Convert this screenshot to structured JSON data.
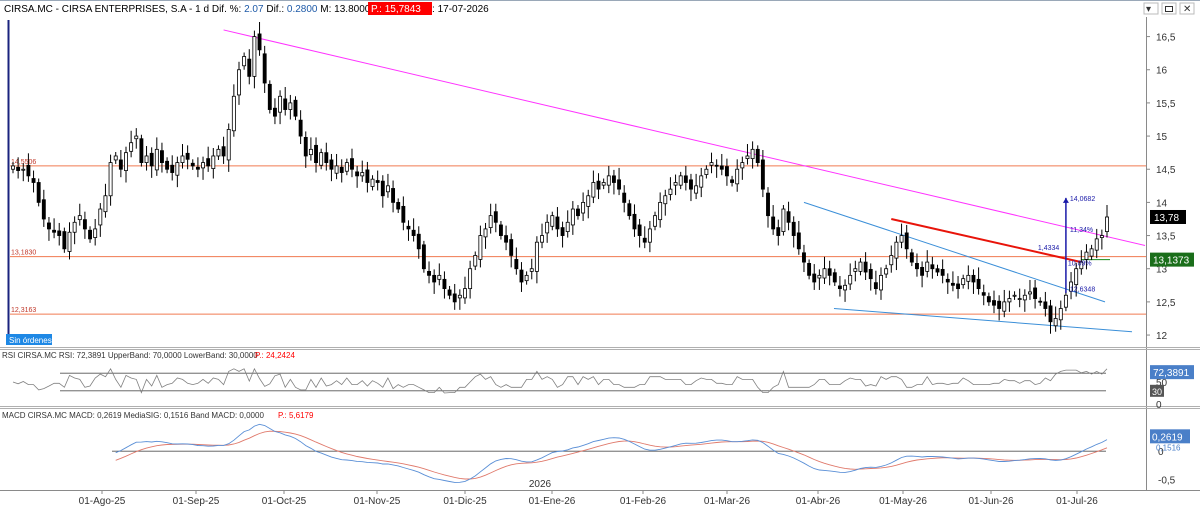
{
  "header": {
    "ticker": "CIRSA.MC",
    "sep1": " - ",
    "company": "CIRSA ENTERPRISES, S.A",
    "sep2": " - ",
    "period": " 1 d",
    "difpct_label": " Dif. %: ",
    "difpct_value": "2.07",
    "dif_label": " Dif.: ",
    "dif_value": "0.2800",
    "rest": " M: 13.8000  m: 13.4400  F: 17-07-2026 ",
    "pbox": " P.: 15,7843 "
  },
  "toolbar": {
    "minimize": "▾",
    "close": "✕"
  },
  "colors": {
    "up": "#000000",
    "down": "#000000",
    "magenta_line": "#ff33ff",
    "blue_channel": "#3b8fd8",
    "red_ma": "#e8140a",
    "horizontal_level": "#f07a50",
    "rsi_line": "#808080",
    "macd_blue": "#5a8fd6",
    "macd_red": "#e07a6c",
    "price_box_last": "#000000",
    "price_box_ma": "#1a6e1a",
    "price_box_blue": "#4a7fc8",
    "header_highlight_blue": "#1e5aa8",
    "header_red_box": "#ff0000"
  },
  "chart_data": [
    {
      "type": "candlestick",
      "name": "price",
      "x_ticks": [
        "01-Ago-25",
        "01-Sep-25",
        "01-Oct-25",
        "01-Nov-25",
        "01-Dic-25",
        "01-Ene-26",
        "01-Feb-26",
        "01-Mar-26",
        "01-Abr-26",
        "01-May-26",
        "01-Jun-26",
        "01-Jul-26"
      ],
      "year_label": "2026",
      "y_ticks": [
        "16,5",
        "16",
        "15,5",
        "15",
        "14,5",
        "14",
        "13,5",
        "13",
        "12,5",
        "12"
      ],
      "ylim": [
        11.85,
        16.75
      ],
      "levels": [
        {
          "label": "14,5506",
          "value": 14.5506
        },
        {
          "label": "13,1830",
          "value": 13.183
        },
        {
          "label": "12,3163",
          "value": 12.3163
        }
      ],
      "last_price_label": "13,78",
      "last_price": 13.78,
      "ma_label": "13,1373",
      "ma_value": 13.1373,
      "annotations": [
        "14,0682",
        "11,34%",
        "1,4334",
        "10,09%",
        "12,6348"
      ],
      "badge": "Sin órdenes",
      "close_series": [
        14.55,
        14.48,
        14.5,
        14.4,
        14.3,
        14.0,
        13.75,
        13.6,
        13.55,
        13.5,
        13.3,
        13.55,
        13.7,
        13.8,
        13.6,
        13.45,
        13.6,
        13.9,
        14.1,
        14.6,
        14.7,
        14.5,
        14.75,
        14.9,
        15.0,
        14.6,
        14.7,
        14.55,
        14.8,
        14.6,
        14.5,
        14.45,
        14.6,
        14.7,
        14.65,
        14.55,
        14.5,
        14.6,
        14.55,
        14.7,
        14.8,
        14.7,
        15.1,
        15.6,
        16.0,
        16.2,
        15.9,
        16.5,
        16.3,
        15.8,
        15.4,
        15.3,
        15.6,
        15.4,
        15.5,
        15.3,
        15.0,
        14.7,
        14.8,
        14.6,
        14.75,
        14.6,
        14.5,
        14.55,
        14.45,
        14.6,
        14.5,
        14.4,
        14.45,
        14.3,
        14.35,
        14.3,
        14.1,
        14.25,
        14.0,
        13.9,
        13.7,
        13.6,
        13.5,
        13.3,
        13.0,
        12.9,
        12.8,
        12.9,
        12.7,
        12.6,
        12.5,
        12.6,
        12.7,
        13.0,
        13.2,
        13.5,
        13.6,
        13.8,
        13.7,
        13.5,
        13.4,
        13.2,
        13.0,
        12.8,
        12.9,
        13.0,
        13.4,
        13.5,
        13.7,
        13.8,
        13.6,
        13.5,
        13.7,
        13.9,
        13.8,
        14.0,
        14.1,
        14.3,
        14.2,
        14.3,
        14.4,
        14.3,
        14.2,
        14.0,
        13.8,
        13.6,
        13.5,
        13.4,
        13.6,
        13.8,
        14.0,
        14.1,
        14.2,
        14.3,
        14.4,
        14.3,
        14.2,
        14.25,
        14.4,
        14.5,
        14.6,
        14.55,
        14.5,
        14.4,
        14.3,
        14.5,
        14.6,
        14.7,
        14.8,
        14.6,
        14.2,
        13.8,
        13.6,
        13.5,
        13.9,
        13.7,
        13.5,
        13.3,
        13.1,
        12.9,
        12.8,
        12.9,
        13.0,
        12.9,
        12.8,
        12.7,
        12.75,
        12.9,
        13.0,
        13.1,
        12.95,
        12.85,
        12.7,
        12.9,
        13.0,
        13.2,
        13.4,
        13.5,
        13.3,
        13.1,
        13.0,
        12.9,
        13.1,
        13.0,
        12.95,
        12.9,
        12.8,
        12.75,
        12.7,
        12.85,
        12.9,
        12.8,
        12.7,
        12.6,
        12.5,
        12.45,
        12.4,
        12.5,
        12.55,
        12.6,
        12.55,
        12.6,
        12.65,
        12.55,
        12.5,
        12.4,
        12.2,
        12.25,
        12.4,
        12.6,
        12.8,
        13.0,
        13.1,
        13.25,
        13.3,
        13.45,
        13.5,
        13.78
      ],
      "magenta_line": {
        "start_value": 16.6,
        "end_value": 13.35
      },
      "blue_upper": {
        "start_value": 14.0,
        "end_value": 12.5
      },
      "blue_lower": {
        "start_value": 12.4,
        "end_value": 12.05
      },
      "red_ma_line": {
        "start_value": 13.75,
        "end_value": 13.1
      }
    },
    {
      "type": "line",
      "name": "RSI",
      "header": "RSI CIRSA.MC RSI: 72,3891 UpperBand: 70,0000 LowerBand: 30,0000",
      "header_p": " P.: 24,2424",
      "ylim": [
        0,
        100
      ],
      "y_ticks": [
        "50",
        "0"
      ],
      "bands": [
        70,
        30
      ],
      "value_label": "72,3891",
      "value": 72.3891,
      "band_label": "30"
    },
    {
      "type": "line",
      "name": "MACD",
      "header": "MACD CIRSA.MC MACD: 0,2619 MediaSIG: 0,1516 Band MACD: 0,0000",
      "header_p": " P.: 5,6179",
      "ylim": [
        -0.65,
        0.55
      ],
      "y_ticks": [
        "0",
        "-0,5"
      ],
      "value_label": "0,2619",
      "signal_label": "0,1516",
      "zero_label": "0",
      "value": 0.2619,
      "signal": 0.1516
    }
  ]
}
